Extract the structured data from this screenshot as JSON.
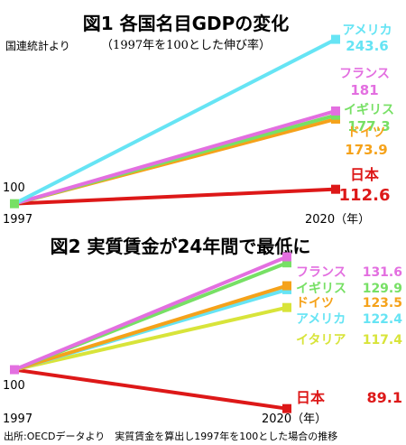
{
  "chart_data": [
    {
      "type": "line",
      "title": "図1 各国名目GDPの変化",
      "subtitle": "（1997年を100とした伸び率）",
      "note": "国連統計より",
      "x": [
        "1997",
        "2020（年）"
      ],
      "start_label": "100",
      "ylim": [
        95,
        248
      ],
      "series": [
        {
          "name": "アメリカ",
          "values": [
            100,
            243.6
          ],
          "color": "#66e4f4",
          "value_label": "243.6"
        },
        {
          "name": "フランス",
          "values": [
            100,
            181
          ],
          "color": "#e36fe0",
          "value_label": "181"
        },
        {
          "name": "イギリス",
          "values": [
            100,
            177.3
          ],
          "color": "#77e065",
          "value_label": "177.3"
        },
        {
          "name": "ドイツ",
          "values": [
            100,
            173.9
          ],
          "color": "#f5a21a",
          "value_label": "173.9"
        },
        {
          "name": "日本",
          "values": [
            100,
            112.6
          ],
          "color": "#dd1818",
          "value_label": "112.6"
        }
      ]
    },
    {
      "type": "line",
      "title": "図2 実質賃金が24年間で最低に",
      "x": [
        "1997",
        "2020（年）"
      ],
      "start_label": "100",
      "ylim": [
        87,
        134
      ],
      "series": [
        {
          "name": "フランス",
          "values": [
            100,
            131.6
          ],
          "color": "#e36fe0",
          "value_label": "131.6"
        },
        {
          "name": "イギリス",
          "values": [
            100,
            129.9
          ],
          "color": "#77e065",
          "value_label": "129.9"
        },
        {
          "name": "ドイツ",
          "values": [
            100,
            123.5
          ],
          "color": "#f5a21a",
          "value_label": "123.5"
        },
        {
          "name": "アメリカ",
          "values": [
            100,
            122.4
          ],
          "color": "#66e4f4",
          "value_label": "122.4"
        },
        {
          "name": "イタリア",
          "values": [
            100,
            117.4
          ],
          "color": "#d8e43a",
          "value_label": "117.4"
        },
        {
          "name": "日本",
          "values": [
            100,
            89.1
          ],
          "color": "#dd1818",
          "value_label": "89.1"
        }
      ]
    }
  ],
  "footer": "出所:OECDデータより　実質賃金を算出し1997年を100とした場合の推移"
}
